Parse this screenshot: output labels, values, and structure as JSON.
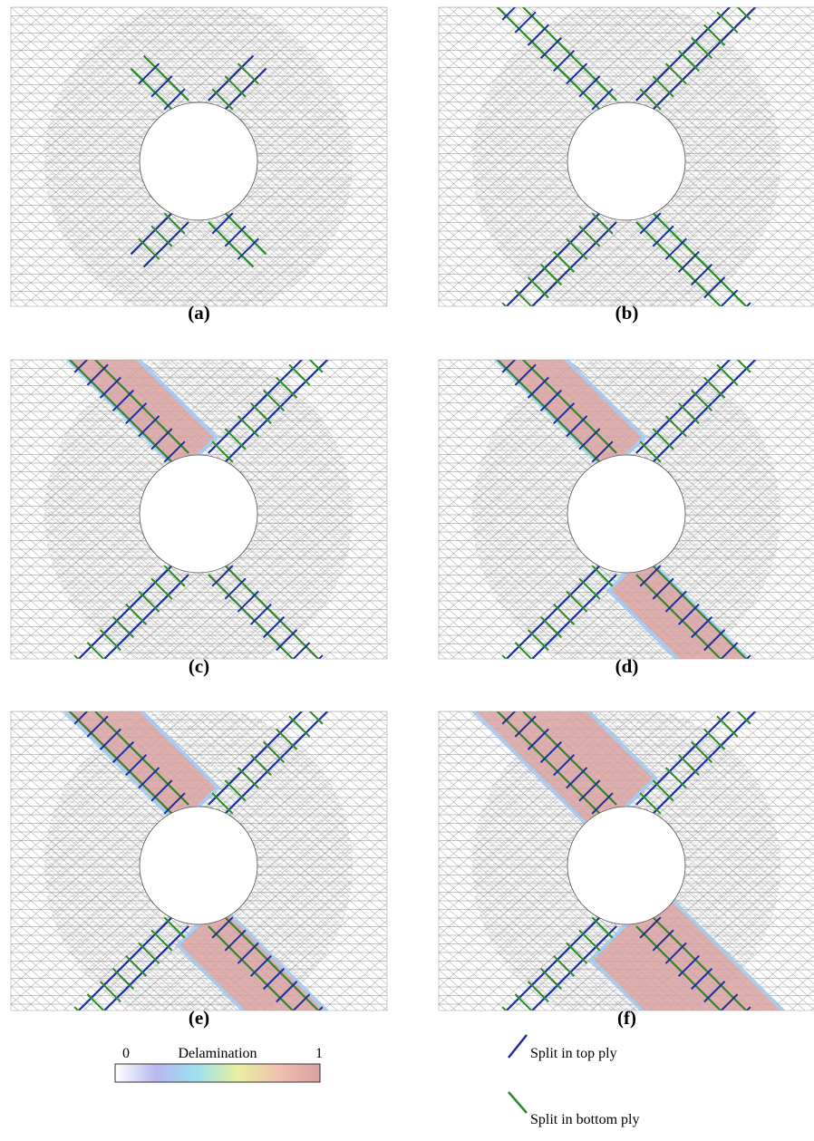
{
  "panels": [
    {
      "label": "(a)"
    },
    {
      "label": "(b)"
    },
    {
      "label": "(c)"
    },
    {
      "label": "(d)"
    },
    {
      "label": "(e)"
    },
    {
      "label": "(f)"
    }
  ],
  "colorbar": {
    "min": 0,
    "title": "Delamination",
    "max": 1
  },
  "legend": [
    {
      "label": "Split in top ply"
    },
    {
      "label": "Split in bottom ply"
    }
  ]
}
